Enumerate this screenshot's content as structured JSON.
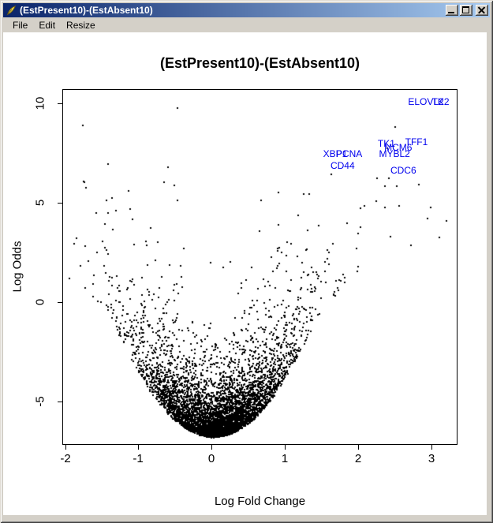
{
  "window": {
    "title": "(EstPresent10)-(EstAbsent10)",
    "titlebar_colors": {
      "left": "#0a246a",
      "right": "#a6caf0"
    },
    "chrome_color": "#d4d0c8",
    "icons": {
      "titlebar": "r-quill-icon",
      "minimize": "minimize-icon",
      "maximize": "maximize-icon",
      "close": "close-icon"
    }
  },
  "menu": {
    "items": [
      "File",
      "Edit",
      "Resize"
    ]
  },
  "chart_data": {
    "type": "scatter",
    "title": "(EstPresent10)-(EstAbsent10)",
    "xlabel": "Log Fold Change",
    "ylabel": "Log Odds",
    "xlim": [
      -2.04,
      3.35
    ],
    "ylim": [
      -7.15,
      10.7
    ],
    "x_ticks": [
      -2,
      -1,
      0,
      1,
      2,
      3
    ],
    "y_ticks": [
      -5,
      0,
      5,
      10
    ],
    "grid": false,
    "legend": null,
    "point_color": "#000000",
    "gene_label_color": "#0000EE",
    "labeled_genes": [
      {
        "name": "ELOVL2",
        "x": 2.93,
        "y": 10.05
      },
      {
        "name": "TK2",
        "x": 3.13,
        "y": 10.05
      },
      {
        "name": "TFF1",
        "x": 2.8,
        "y": 8.05
      },
      {
        "name": "TK1",
        "x": 2.39,
        "y": 7.95
      },
      {
        "name": "MCM6",
        "x": 2.55,
        "y": 7.75
      },
      {
        "name": "MYBL2",
        "x": 2.5,
        "y": 7.45
      },
      {
        "name": "PCNA",
        "x": 1.88,
        "y": 7.45
      },
      {
        "name": "XBP1",
        "x": 1.69,
        "y": 7.45
      },
      {
        "name": "CD44",
        "x": 1.79,
        "y": 6.85
      },
      {
        "name": "CDC6",
        "x": 2.62,
        "y": 6.6
      }
    ],
    "outlier_points": [
      [
        -1.75,
        6.05
      ],
      [
        -1.86,
        3.25
      ],
      [
        -1.59,
        4.5
      ],
      [
        -1.32,
        4.65
      ],
      [
        2.41,
        6.25
      ],
      [
        2.52,
        5.85
      ],
      [
        2.82,
        5.95
      ],
      [
        2.24,
        5.1
      ],
      [
        2.98,
        4.8
      ],
      [
        3.2,
        4.1
      ],
      [
        2.71,
        2.9
      ],
      [
        3.1,
        3.3
      ],
      [
        2.94,
        4.25
      ],
      [
        -1.7,
        2.1
      ],
      [
        -1.95,
        1.2
      ]
    ],
    "cloud": {
      "description": "volcano-shaped dense point cloud, minimum log-odds -6.78 at log-fold-change ~0",
      "seed": 13,
      "n": 5200,
      "x_center": 0.02,
      "x_sigma_core": 0.5,
      "x_sigma_tail": 1.05,
      "tail_frac": 0.08,
      "p_right": 0.54,
      "y_base": -6.78,
      "k_quad": 3.05,
      "quad_limit": 1.4,
      "k_lin": 4.0,
      "noise_base": 0.85,
      "noise_slope": 0.75,
      "stray_frac": 0.04,
      "stray_mult": 1.8,
      "y_max": 10.3
    }
  }
}
